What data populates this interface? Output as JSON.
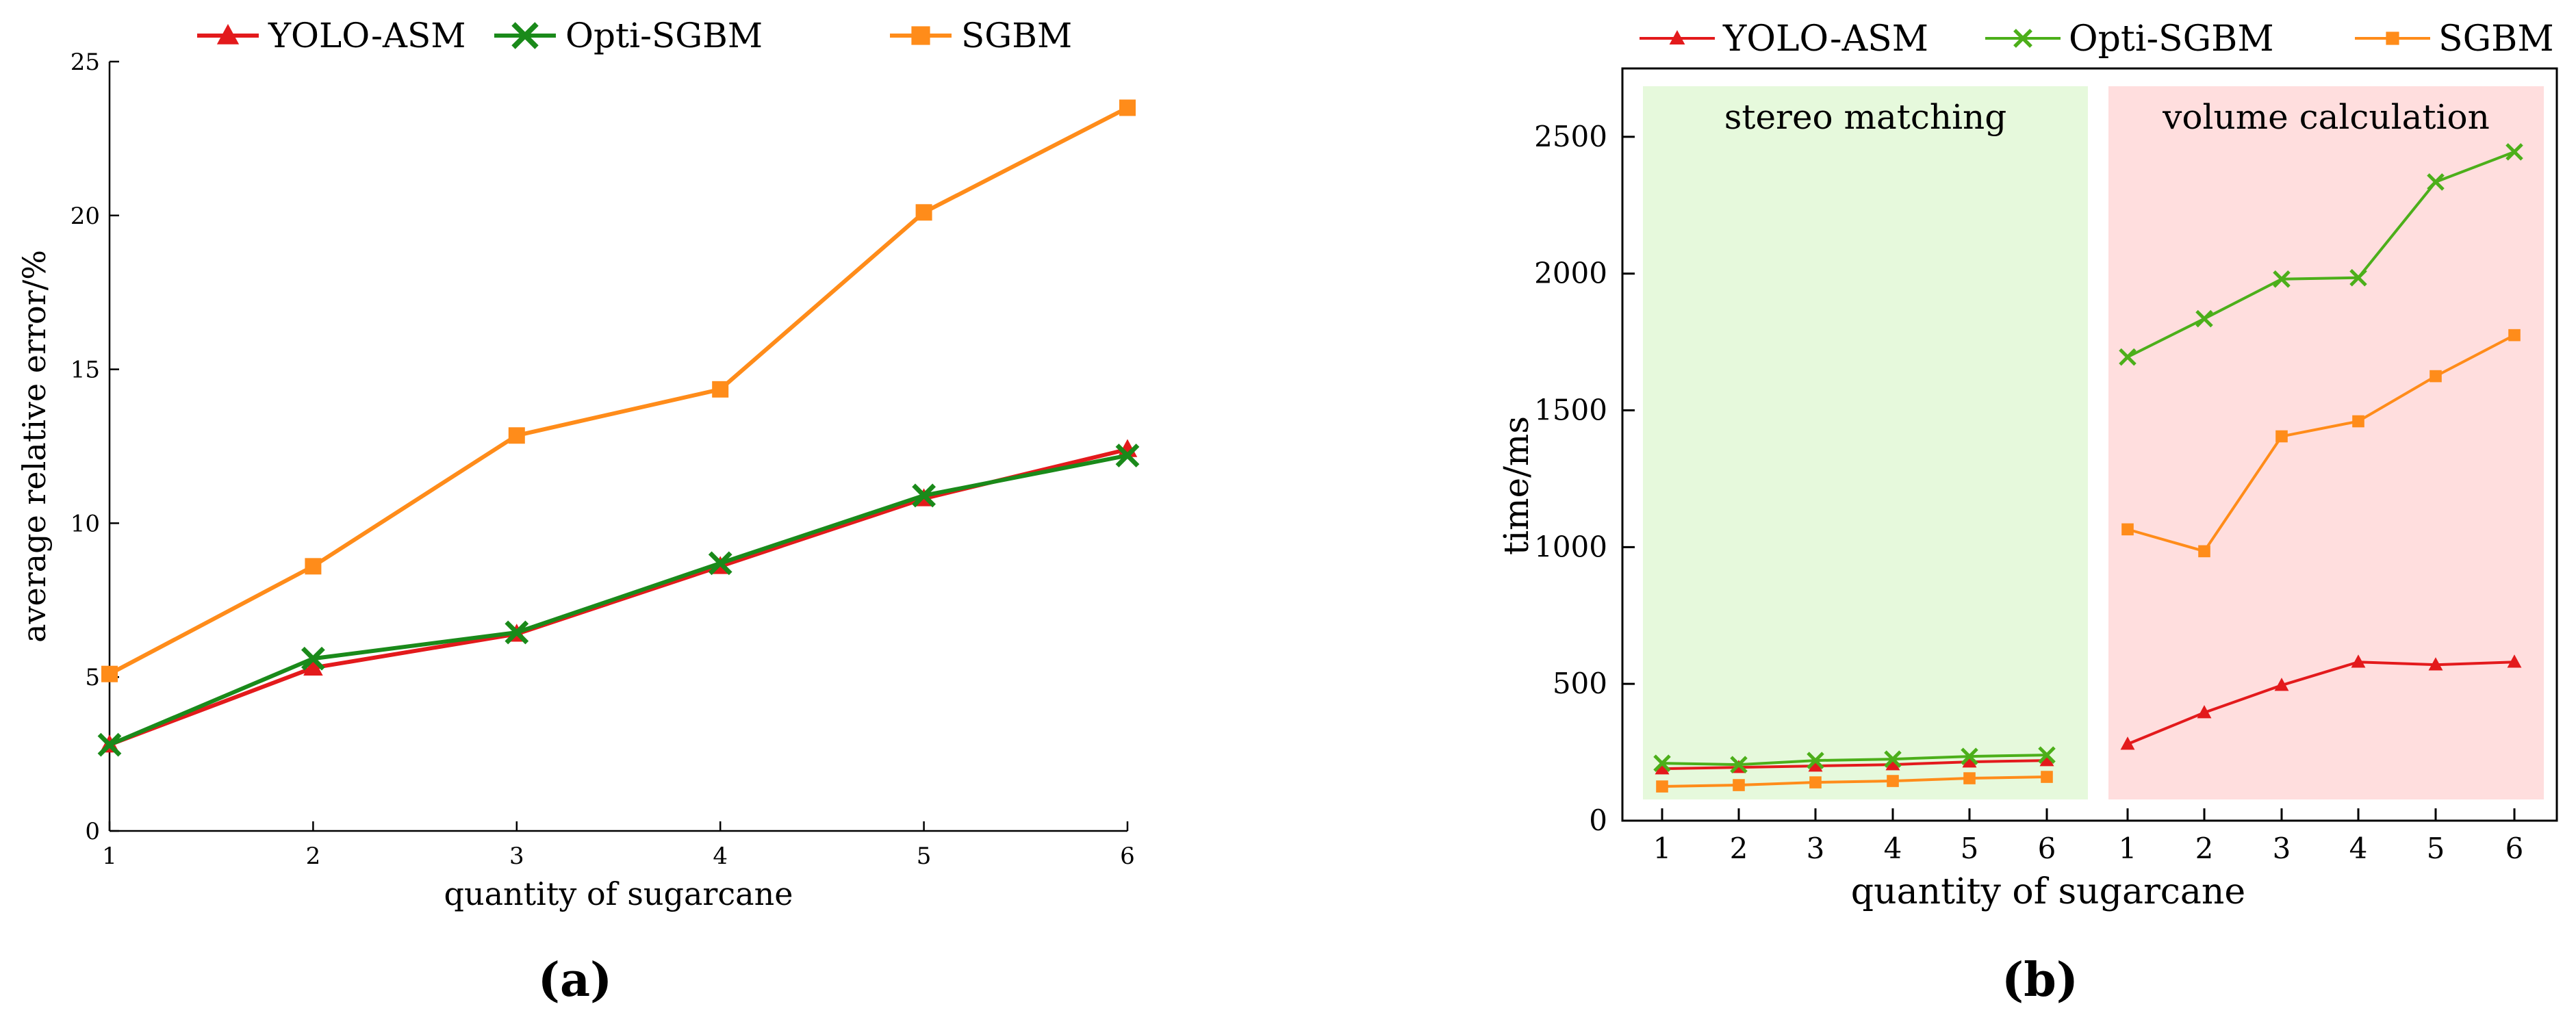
{
  "chart_data": [
    {
      "type": "line",
      "panel_label": "(a)",
      "xlabel": "quantity of sugarcane",
      "ylabel": "average relative error/%",
      "x": [
        1,
        2,
        3,
        4,
        5,
        6
      ],
      "xticks": [
        "1",
        "2",
        "3",
        "4",
        "5",
        "6"
      ],
      "ylim": [
        0,
        25
      ],
      "yticks": [
        "0",
        "5",
        "10",
        "15",
        "20",
        "25"
      ],
      "legend_position": "top",
      "series": [
        {
          "name": "YOLO-ASM",
          "color": "#e31a1c",
          "marker": "triangle",
          "values": [
            2.8,
            5.3,
            6.4,
            8.6,
            10.8,
            12.4
          ]
        },
        {
          "name": "Opti-SGBM",
          "color": "#1a8a1a",
          "marker": "x",
          "values": [
            2.8,
            5.6,
            6.45,
            8.7,
            10.9,
            12.2
          ]
        },
        {
          "name": "SGBM",
          "color": "#ff8c1a",
          "marker": "square",
          "values": [
            5.1,
            8.6,
            12.85,
            14.35,
            20.1,
            23.5
          ]
        }
      ]
    },
    {
      "type": "line",
      "panel_label": "(b)",
      "xlabel": "quantity of sugarcane",
      "ylabel": "time/ms",
      "ylim": [
        0,
        2750
      ],
      "yticks": [
        "0",
        "500",
        "1000",
        "1500",
        "2000",
        "2500"
      ],
      "legend_position": "top",
      "groups": [
        {
          "label": "stereo matching",
          "color": "#e6f9dc",
          "xticks": [
            "1",
            "2",
            "3",
            "4",
            "5",
            "6"
          ]
        },
        {
          "label": "volume calculation",
          "color": "#ffdede",
          "xticks": [
            "1",
            "2",
            "3",
            "4",
            "5",
            "6"
          ]
        }
      ],
      "series": [
        {
          "name": "YOLO-ASM",
          "color": "#e31a1c",
          "marker": "triangle",
          "stereo_matching": [
            190,
            195,
            200,
            205,
            215,
            220
          ],
          "volume_calculation": [
            280,
            395,
            495,
            580,
            570,
            580
          ]
        },
        {
          "name": "Opti-SGBM",
          "color": "#4caf1a",
          "marker": "x",
          "stereo_matching": [
            210,
            205,
            220,
            225,
            235,
            240
          ],
          "volume_calculation": [
            1695,
            1835,
            1980,
            1985,
            2335,
            2445
          ]
        },
        {
          "name": "SGBM",
          "color": "#ff8c1a",
          "marker": "square",
          "stereo_matching": [
            125,
            130,
            140,
            145,
            155,
            160
          ],
          "volume_calculation": [
            1065,
            985,
            1405,
            1460,
            1625,
            1775
          ]
        }
      ]
    }
  ]
}
